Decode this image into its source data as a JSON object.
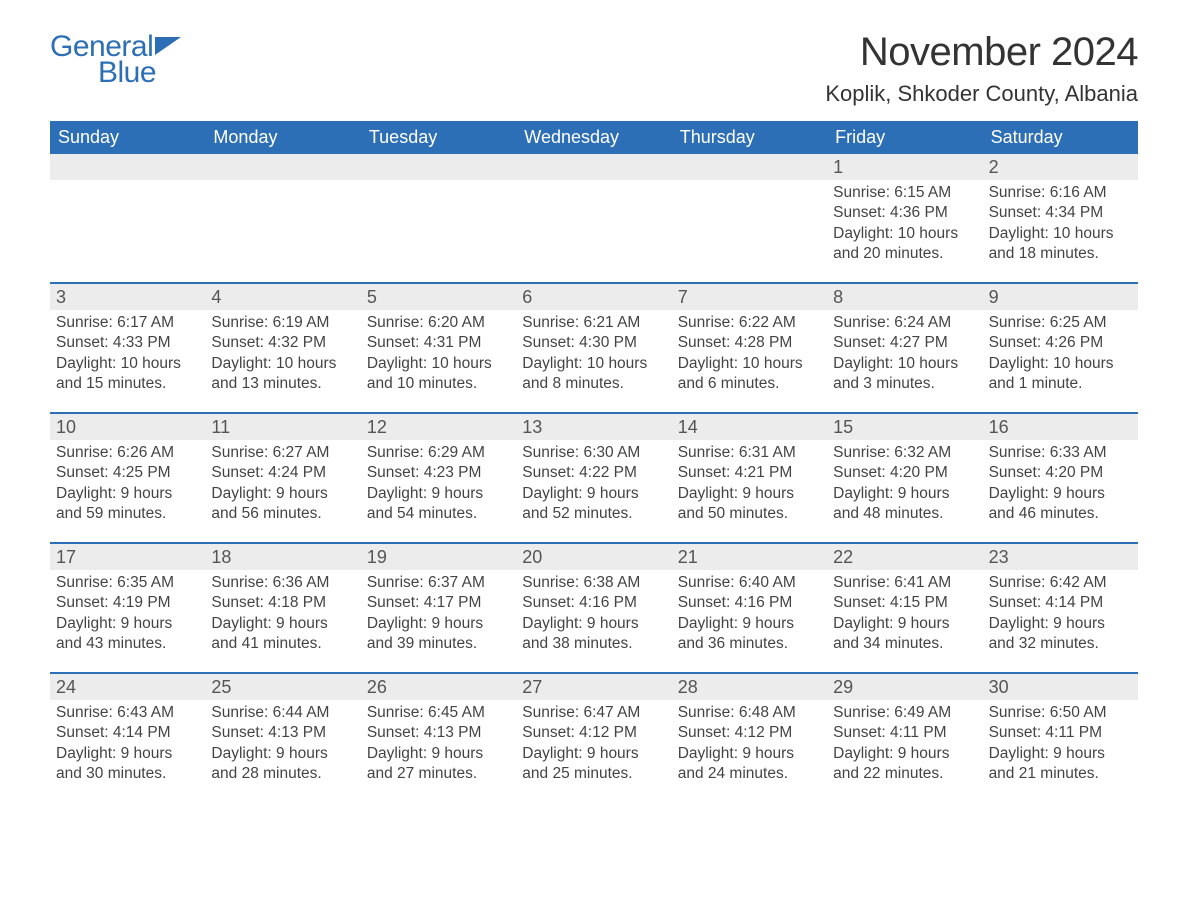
{
  "brand": {
    "part1": "General",
    "part2": "Blue",
    "color": "#2d6fb6"
  },
  "title": "November 2024",
  "location": "Koplik, Shkoder County, Albania",
  "colors": {
    "header_bg": "#2d6fb6",
    "header_text": "#ffffff",
    "daynum_bg": "#ececec",
    "text": "#444444",
    "rule": "#2d6fb6",
    "page_bg": "#ffffff"
  },
  "fonts": {
    "title_size": 40,
    "location_size": 22,
    "weekday_size": 18,
    "daynum_size": 18,
    "body_size": 15.5
  },
  "weekdays": [
    "Sunday",
    "Monday",
    "Tuesday",
    "Wednesday",
    "Thursday",
    "Friday",
    "Saturday"
  ],
  "layout": {
    "columns": 7,
    "rows": 5,
    "first_day_column_index": 5
  },
  "days": [
    {
      "n": 1,
      "sunrise": "6:15 AM",
      "sunset": "4:36 PM",
      "daylight": "10 hours and 20 minutes."
    },
    {
      "n": 2,
      "sunrise": "6:16 AM",
      "sunset": "4:34 PM",
      "daylight": "10 hours and 18 minutes."
    },
    {
      "n": 3,
      "sunrise": "6:17 AM",
      "sunset": "4:33 PM",
      "daylight": "10 hours and 15 minutes."
    },
    {
      "n": 4,
      "sunrise": "6:19 AM",
      "sunset": "4:32 PM",
      "daylight": "10 hours and 13 minutes."
    },
    {
      "n": 5,
      "sunrise": "6:20 AM",
      "sunset": "4:31 PM",
      "daylight": "10 hours and 10 minutes."
    },
    {
      "n": 6,
      "sunrise": "6:21 AM",
      "sunset": "4:30 PM",
      "daylight": "10 hours and 8 minutes."
    },
    {
      "n": 7,
      "sunrise": "6:22 AM",
      "sunset": "4:28 PM",
      "daylight": "10 hours and 6 minutes."
    },
    {
      "n": 8,
      "sunrise": "6:24 AM",
      "sunset": "4:27 PM",
      "daylight": "10 hours and 3 minutes."
    },
    {
      "n": 9,
      "sunrise": "6:25 AM",
      "sunset": "4:26 PM",
      "daylight": "10 hours and 1 minute."
    },
    {
      "n": 10,
      "sunrise": "6:26 AM",
      "sunset": "4:25 PM",
      "daylight": "9 hours and 59 minutes."
    },
    {
      "n": 11,
      "sunrise": "6:27 AM",
      "sunset": "4:24 PM",
      "daylight": "9 hours and 56 minutes."
    },
    {
      "n": 12,
      "sunrise": "6:29 AM",
      "sunset": "4:23 PM",
      "daylight": "9 hours and 54 minutes."
    },
    {
      "n": 13,
      "sunrise": "6:30 AM",
      "sunset": "4:22 PM",
      "daylight": "9 hours and 52 minutes."
    },
    {
      "n": 14,
      "sunrise": "6:31 AM",
      "sunset": "4:21 PM",
      "daylight": "9 hours and 50 minutes."
    },
    {
      "n": 15,
      "sunrise": "6:32 AM",
      "sunset": "4:20 PM",
      "daylight": "9 hours and 48 minutes."
    },
    {
      "n": 16,
      "sunrise": "6:33 AM",
      "sunset": "4:20 PM",
      "daylight": "9 hours and 46 minutes."
    },
    {
      "n": 17,
      "sunrise": "6:35 AM",
      "sunset": "4:19 PM",
      "daylight": "9 hours and 43 minutes."
    },
    {
      "n": 18,
      "sunrise": "6:36 AM",
      "sunset": "4:18 PM",
      "daylight": "9 hours and 41 minutes."
    },
    {
      "n": 19,
      "sunrise": "6:37 AM",
      "sunset": "4:17 PM",
      "daylight": "9 hours and 39 minutes."
    },
    {
      "n": 20,
      "sunrise": "6:38 AM",
      "sunset": "4:16 PM",
      "daylight": "9 hours and 38 minutes."
    },
    {
      "n": 21,
      "sunrise": "6:40 AM",
      "sunset": "4:16 PM",
      "daylight": "9 hours and 36 minutes."
    },
    {
      "n": 22,
      "sunrise": "6:41 AM",
      "sunset": "4:15 PM",
      "daylight": "9 hours and 34 minutes."
    },
    {
      "n": 23,
      "sunrise": "6:42 AM",
      "sunset": "4:14 PM",
      "daylight": "9 hours and 32 minutes."
    },
    {
      "n": 24,
      "sunrise": "6:43 AM",
      "sunset": "4:14 PM",
      "daylight": "9 hours and 30 minutes."
    },
    {
      "n": 25,
      "sunrise": "6:44 AM",
      "sunset": "4:13 PM",
      "daylight": "9 hours and 28 minutes."
    },
    {
      "n": 26,
      "sunrise": "6:45 AM",
      "sunset": "4:13 PM",
      "daylight": "9 hours and 27 minutes."
    },
    {
      "n": 27,
      "sunrise": "6:47 AM",
      "sunset": "4:12 PM",
      "daylight": "9 hours and 25 minutes."
    },
    {
      "n": 28,
      "sunrise": "6:48 AM",
      "sunset": "4:12 PM",
      "daylight": "9 hours and 24 minutes."
    },
    {
      "n": 29,
      "sunrise": "6:49 AM",
      "sunset": "4:11 PM",
      "daylight": "9 hours and 22 minutes."
    },
    {
      "n": 30,
      "sunrise": "6:50 AM",
      "sunset": "4:11 PM",
      "daylight": "9 hours and 21 minutes."
    }
  ],
  "labels": {
    "sunrise": "Sunrise:",
    "sunset": "Sunset:",
    "daylight": "Daylight:"
  }
}
